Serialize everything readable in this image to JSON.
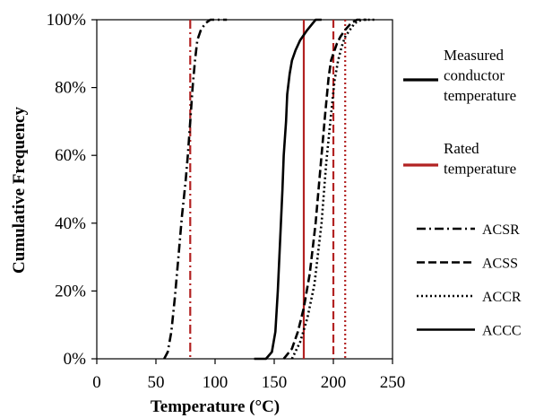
{
  "chart_data": {
    "type": "line",
    "title": "",
    "xlabel": "Temperature  (°C)",
    "ylabel": "Cumulative Frequency",
    "xlim": [
      0,
      250
    ],
    "ylim": [
      0,
      100
    ],
    "x_ticks": [
      "0",
      "50",
      "100",
      "150",
      "200",
      "250"
    ],
    "y_ticks": [
      "0%",
      "20%",
      "40%",
      "60%",
      "80%",
      "100%"
    ],
    "grid": false,
    "legend_position": "right",
    "legend_groups": [
      {
        "lines": [
          "Measured",
          "conductor",
          "temperature"
        ],
        "color": "#000000",
        "style": "solid-thick"
      },
      {
        "lines": [
          "Rated",
          "temperature"
        ],
        "color": "#b22222",
        "style": "solid-thick"
      }
    ],
    "series": [
      {
        "name": "ACSR",
        "style": "dashdot",
        "color": "#000000",
        "x": [
          57,
          60,
          63,
          66,
          69,
          72,
          75,
          77,
          79,
          81,
          83,
          85,
          88,
          92,
          96,
          100,
          105,
          110
        ],
        "y": [
          0,
          2,
          8,
          18,
          30,
          42,
          52,
          60,
          70,
          80,
          88,
          94,
          97,
          99,
          100,
          100,
          100,
          100
        ]
      },
      {
        "name": "ACSS",
        "style": "dashed",
        "color": "#000000",
        "x": [
          158,
          165,
          170,
          175,
          180,
          185,
          190,
          193,
          196,
          198,
          200,
          203,
          206,
          210,
          215,
          220,
          228
        ],
        "y": [
          0,
          3,
          8,
          15,
          25,
          40,
          60,
          72,
          83,
          88,
          90,
          93,
          95,
          97,
          99,
          100,
          100
        ]
      },
      {
        "name": "ACCR",
        "style": "dotted",
        "color": "#000000",
        "x": [
          165,
          172,
          178,
          184,
          190,
          194,
          198,
          201,
          204,
          207,
          210,
          214,
          218,
          224,
          230,
          236
        ],
        "y": [
          0,
          5,
          12,
          22,
          40,
          58,
          72,
          82,
          88,
          92,
          95,
          97,
          99,
          100,
          100,
          100
        ]
      },
      {
        "name": "ACCC",
        "style": "solid",
        "color": "#000000",
        "x": [
          133,
          143,
          148,
          151,
          153,
          155,
          157,
          158,
          160,
          161,
          163,
          165,
          168,
          172,
          178,
          185,
          190
        ],
        "y": [
          0,
          0,
          2,
          8,
          20,
          35,
          50,
          60,
          70,
          78,
          84,
          88,
          91,
          94,
          97,
          100,
          100
        ]
      }
    ],
    "reference_lines": [
      {
        "x": 79,
        "style": "dashdot",
        "color": "#b22222"
      },
      {
        "x": 175,
        "style": "solid",
        "color": "#b22222"
      },
      {
        "x": 200,
        "style": "dashed",
        "color": "#b22222"
      },
      {
        "x": 210,
        "style": "dotted",
        "color": "#b22222"
      }
    ]
  }
}
